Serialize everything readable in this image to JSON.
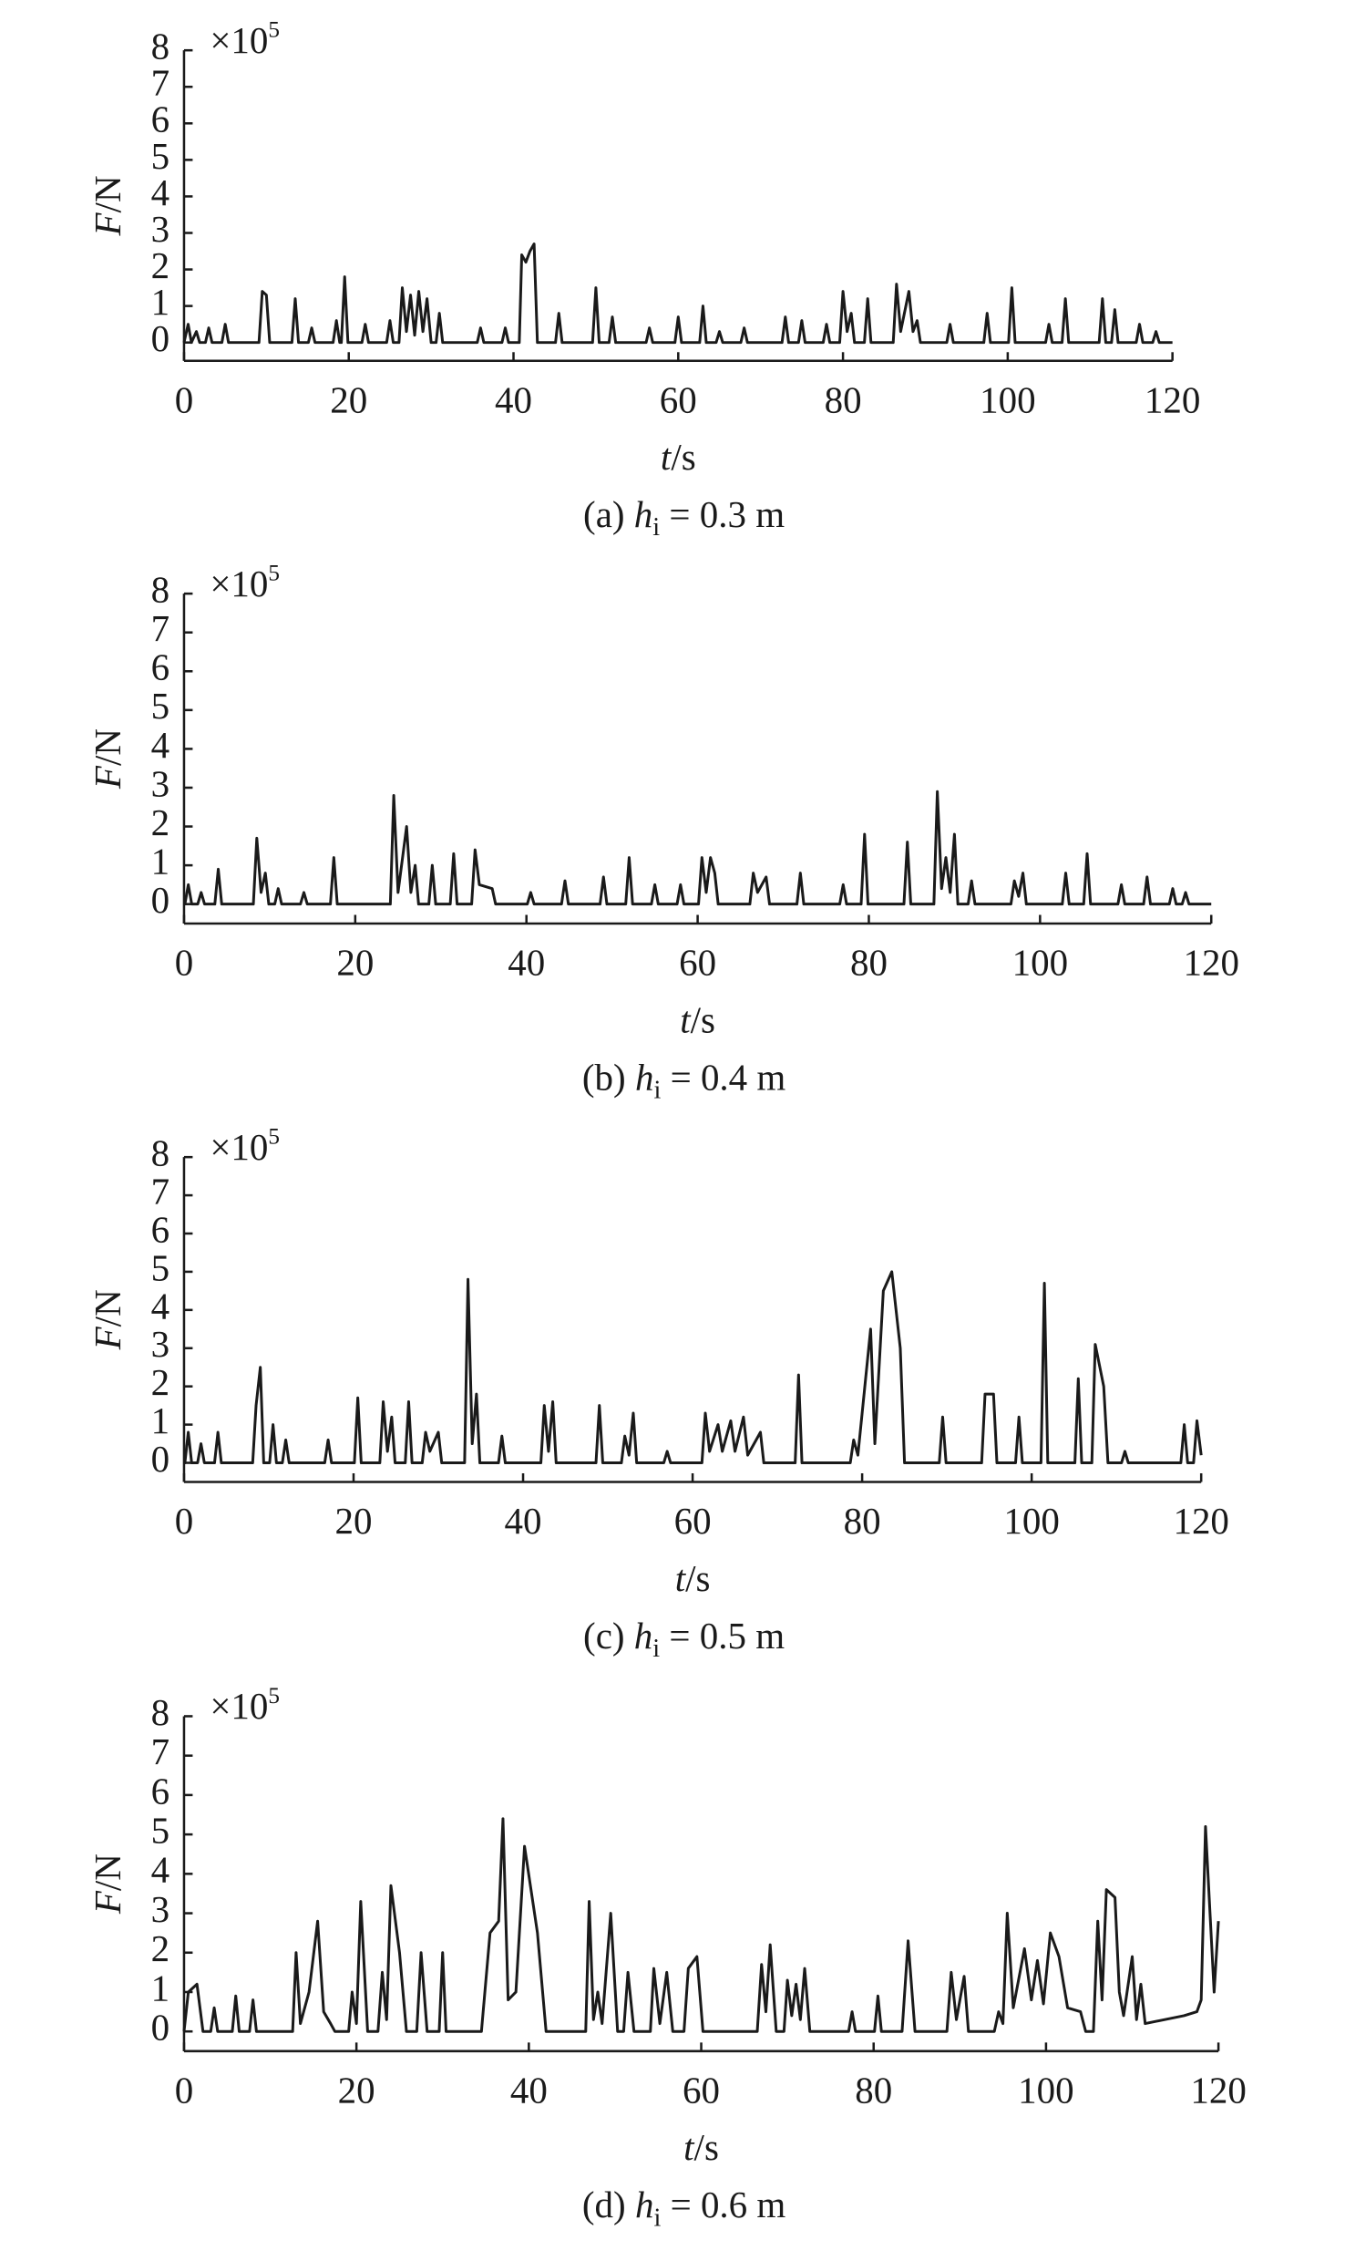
{
  "chart_data": [
    {
      "type": "line",
      "caption": [
        "(a) ",
        "h",
        "i",
        " = 0.3 m"
      ],
      "y_label": [
        "F",
        "/N"
      ],
      "x_label": [
        "t",
        "/s"
      ],
      "y_multiplier": [
        "×10",
        "5"
      ],
      "color": "#1a1a1a",
      "xlim": [
        0,
        120
      ],
      "xticks": [
        0,
        20,
        40,
        60,
        80,
        100,
        120
      ],
      "ylim": [
        -0.5,
        8
      ],
      "yticks": [
        0,
        1,
        2,
        3,
        4,
        5,
        6,
        7,
        8
      ],
      "x": [
        0,
        0.5,
        0.9,
        1.5,
        1.9,
        2.6,
        3,
        3.4,
        4.6,
        5,
        5.4,
        9.1,
        9.5,
        10,
        10.4,
        13.1,
        13.5,
        13.9,
        15.1,
        15.5,
        15.9,
        18.1,
        18.5,
        18.9,
        19.1,
        19.5,
        19.9,
        21.6,
        22,
        22.4,
        24.6,
        25,
        25.4,
        26.1,
        26.5,
        27,
        27.5,
        28,
        28.5,
        29,
        29.5,
        30,
        30.6,
        31,
        31.4,
        35.6,
        36,
        36.4,
        38.6,
        39,
        39.4,
        40.7,
        41,
        41.5,
        42,
        42.5,
        42.9,
        45.1,
        45.5,
        45.9,
        49.6,
        50,
        50.4,
        51.6,
        52,
        52.4,
        56.1,
        56.5,
        56.9,
        59.6,
        60,
        60.4,
        62.6,
        63,
        63.4,
        64.6,
        65,
        65.4,
        67.6,
        68,
        68.4,
        72.6,
        73,
        73.4,
        74.6,
        75,
        75.4,
        77.6,
        78,
        78.4,
        79.6,
        80,
        80.5,
        81,
        81.4,
        82.6,
        83,
        83.4,
        86.1,
        86.5,
        87,
        88,
        88.5,
        89,
        89.4,
        92.6,
        93,
        93.4,
        97.1,
        97.5,
        97.9,
        100.1,
        100.5,
        100.9,
        104.6,
        105,
        105.4,
        106.6,
        107,
        107.4,
        111.1,
        111.5,
        111.9,
        112.6,
        113,
        113.4,
        115.6,
        116,
        116.4,
        117.6,
        118,
        118.4,
        120
      ],
      "values": [
        0,
        0.5,
        0,
        0.3,
        0,
        0,
        0.4,
        0,
        0,
        0.5,
        0,
        0,
        1.4,
        1.3,
        0,
        0,
        1.2,
        0,
        0,
        0.4,
        0,
        0,
        0.6,
        0,
        0,
        1.8,
        0,
        0,
        0.5,
        0,
        0,
        0.6,
        0,
        0,
        1.5,
        0.3,
        1.3,
        0.2,
        1.4,
        0.3,
        1.2,
        0,
        0,
        0.8,
        0,
        0,
        0.4,
        0,
        0,
        0.4,
        0,
        0,
        2.4,
        2.2,
        2.5,
        2.7,
        0,
        0,
        0.8,
        0,
        0,
        1.5,
        0,
        0,
        0.7,
        0,
        0,
        0.4,
        0,
        0,
        0.7,
        0,
        0,
        1.0,
        0,
        0,
        0.3,
        0,
        0,
        0.4,
        0,
        0,
        0.7,
        0,
        0,
        0.6,
        0,
        0,
        0.5,
        0,
        0,
        1.4,
        0.3,
        0.8,
        0,
        0,
        1.2,
        0,
        0,
        1.6,
        0.3,
        1.4,
        0.3,
        0.6,
        0,
        0,
        0.5,
        0,
        0,
        0.8,
        0,
        0,
        1.5,
        0,
        0,
        0.5,
        0,
        0,
        1.2,
        0,
        0,
        1.2,
        0,
        0,
        0.9,
        0,
        0,
        0.5,
        0,
        0,
        0.3,
        0,
        0
      ]
    },
    {
      "type": "line",
      "caption": [
        "(b) ",
        "h",
        "i",
        " = 0.4 m"
      ],
      "y_label": [
        "F",
        "/N"
      ],
      "x_label": [
        "t",
        "/s"
      ],
      "y_multiplier": [
        "×10",
        "5"
      ],
      "color": "#1a1a1a",
      "xlim": [
        0,
        120
      ],
      "xticks": [
        0,
        20,
        40,
        60,
        80,
        100,
        120
      ],
      "ylim": [
        -0.5,
        8
      ],
      "yticks": [
        0,
        1,
        2,
        3,
        4,
        5,
        6,
        7,
        8
      ],
      "x": [
        0,
        0.1,
        0.5,
        0.9,
        1.6,
        2,
        2.4,
        3.6,
        4,
        4.4,
        8.1,
        8.5,
        9,
        9.5,
        9.9,
        10.6,
        11,
        11.4,
        13.6,
        14,
        14.4,
        17.1,
        17.5,
        17.9,
        24.1,
        24.5,
        25,
        26,
        26.5,
        27,
        27.4,
        28.6,
        29,
        29.4,
        31.1,
        31.5,
        31.9,
        33.6,
        34,
        34.5,
        36,
        36.4,
        40.1,
        40.5,
        40.9,
        44.1,
        44.5,
        44.9,
        48.6,
        49,
        49.4,
        51.6,
        52,
        52.4,
        54.6,
        55,
        55.4,
        57.6,
        58,
        58.4,
        60.1,
        60.5,
        61,
        61.5,
        62,
        62.4,
        66.1,
        66.5,
        67,
        68,
        68.4,
        71.6,
        72,
        72.4,
        76.6,
        77,
        77.4,
        79.1,
        79.5,
        79.9,
        84.1,
        84.5,
        84.9,
        87.6,
        88,
        88.5,
        89,
        89.5,
        90,
        90.4,
        91.6,
        92,
        92.4,
        96.6,
        97,
        97.5,
        98,
        98.4,
        102.6,
        103,
        103.4,
        105.1,
        105.5,
        105.9,
        109.1,
        109.5,
        109.9,
        112.1,
        112.5,
        112.9,
        115.1,
        115.5,
        115.9,
        116.6,
        117,
        117.4,
        120
      ],
      "values": [
        0,
        0,
        0.5,
        0,
        0,
        0.3,
        0,
        0,
        0.9,
        0,
        0,
        1.7,
        0.3,
        0.8,
        0,
        0,
        0.4,
        0,
        0,
        0.3,
        0,
        0,
        1.2,
        0,
        0,
        2.8,
        0.3,
        2.0,
        0.3,
        1.0,
        0,
        0,
        1.0,
        0,
        0,
        1.3,
        0,
        0,
        1.4,
        0.5,
        0.4,
        0,
        0,
        0.3,
        0,
        0,
        0.6,
        0,
        0,
        0.7,
        0,
        0,
        1.2,
        0,
        0,
        0.5,
        0,
        0,
        0.5,
        0,
        0,
        1.2,
        0.3,
        1.2,
        0.8,
        0,
        0,
        0.8,
        0.3,
        0.7,
        0,
        0,
        0.8,
        0,
        0,
        0.5,
        0,
        0,
        1.8,
        0,
        0,
        1.6,
        0,
        0,
        2.9,
        0.4,
        1.2,
        0.3,
        1.8,
        0,
        0,
        0.6,
        0,
        0,
        0.6,
        0.2,
        0.8,
        0,
        0,
        0.8,
        0,
        0,
        1.3,
        0,
        0,
        0.5,
        0,
        0,
        0.7,
        0,
        0,
        0.4,
        0,
        0,
        0.3,
        0,
        0
      ]
    },
    {
      "type": "line",
      "caption": [
        "(c) ",
        "h",
        "i",
        " = 0.5 m"
      ],
      "y_label": [
        "F",
        "/N"
      ],
      "x_label": [
        "t",
        "/s"
      ],
      "y_multiplier": [
        "×10",
        "5"
      ],
      "color": "#1a1a1a",
      "xlim": [
        0,
        120
      ],
      "xticks": [
        0,
        20,
        40,
        60,
        80,
        100,
        120
      ],
      "ylim": [
        -0.5,
        8
      ],
      "yticks": [
        0,
        1,
        2,
        3,
        4,
        5,
        6,
        7,
        8
      ],
      "x": [
        0,
        0.1,
        0.5,
        0.9,
        1.6,
        2,
        2.4,
        3.6,
        4,
        4.4,
        8.1,
        8.5,
        9,
        9.4,
        10.1,
        10.5,
        10.9,
        11.6,
        12,
        12.4,
        16.6,
        17,
        17.4,
        20.1,
        20.5,
        20.9,
        23.1,
        23.5,
        24,
        24.5,
        24.9,
        26.1,
        26.5,
        26.9,
        28.1,
        28.5,
        29,
        30,
        30.4,
        33.1,
        33.5,
        34,
        34.5,
        34.9,
        37.1,
        37.5,
        37.9,
        42.1,
        42.5,
        43,
        43.5,
        43.9,
        48.6,
        49,
        49.4,
        51.6,
        52,
        52.5,
        53,
        53.4,
        56.6,
        57,
        57.4,
        61.1,
        61.5,
        62,
        63,
        63.5,
        64.5,
        65,
        66,
        66.5,
        68,
        68.4,
        72.1,
        72.5,
        72.9,
        78.6,
        79,
        79.5,
        81,
        81.5,
        82.5,
        83.5,
        84.5,
        85,
        89.1,
        89.5,
        89.9,
        94.1,
        94.5,
        95.5,
        95.9,
        98.1,
        98.5,
        98.9,
        101.1,
        101.5,
        101.9,
        105.1,
        105.5,
        105.9,
        107.1,
        107.5,
        108.5,
        109,
        110.6,
        111,
        111.4,
        117.6,
        118,
        118.4,
        119.1,
        119.5,
        120
      ],
      "values": [
        0,
        0,
        0.8,
        0,
        0,
        0.5,
        0,
        0,
        0.8,
        0,
        0,
        1.5,
        2.5,
        0,
        0,
        1.0,
        0,
        0,
        0.6,
        0,
        0,
        0.6,
        0,
        0,
        1.7,
        0,
        0,
        1.6,
        0.3,
        1.2,
        0,
        0,
        1.6,
        0,
        0,
        0.8,
        0.3,
        0.8,
        0,
        0,
        4.8,
        0.5,
        1.8,
        0,
        0,
        0.7,
        0,
        0,
        1.5,
        0.3,
        1.6,
        0,
        0,
        1.5,
        0,
        0,
        0.7,
        0.2,
        1.3,
        0,
        0,
        0.3,
        0,
        0,
        1.3,
        0.3,
        1.0,
        0.3,
        1.1,
        0.3,
        1.2,
        0.2,
        0.8,
        0,
        0,
        2.3,
        0,
        0,
        0.6,
        0.2,
        3.5,
        0.5,
        4.5,
        5.0,
        3.0,
        0,
        0,
        1.2,
        0,
        0,
        1.8,
        1.8,
        0,
        0,
        1.2,
        0,
        0,
        4.7,
        0,
        0,
        2.2,
        0,
        0,
        3.1,
        2.0,
        0,
        0,
        0.3,
        0,
        0,
        1.0,
        0,
        0,
        1.1,
        0.2
      ]
    },
    {
      "type": "line",
      "caption": [
        "(d) ",
        "h",
        "i",
        " = 0.6 m"
      ],
      "y_label": [
        "F",
        "/N"
      ],
      "x_label": [
        "t",
        "/s"
      ],
      "y_multiplier": [
        "×10",
        "5"
      ],
      "color": "#1a1a1a",
      "xlim": [
        0,
        120
      ],
      "xticks": [
        0,
        20,
        40,
        60,
        80,
        100,
        120
      ],
      "ylim": [
        -0.5,
        8
      ],
      "yticks": [
        0,
        1,
        2,
        3,
        4,
        5,
        6,
        7,
        8
      ],
      "x": [
        0,
        0.5,
        1.5,
        2.2,
        3.1,
        3.5,
        3.9,
        5.6,
        6,
        6.4,
        7.6,
        8,
        8.4,
        12.6,
        13,
        13.5,
        14.5,
        15.5,
        16.2,
        17,
        17.5,
        19.1,
        19.5,
        20,
        20.5,
        21.3,
        22.5,
        23,
        23.5,
        24,
        25,
        25.8,
        27,
        27.5,
        28.2,
        29.6,
        30,
        30.4,
        34.5,
        35.5,
        36.5,
        37,
        37.6,
        38.5,
        39.5,
        41,
        42,
        46.6,
        47,
        47.5,
        48,
        48.5,
        49.5,
        50.3,
        51,
        51.5,
        52.2,
        54.1,
        54.5,
        55.2,
        56,
        56.7,
        58,
        58.5,
        59.5,
        60.2,
        66.5,
        67,
        67.5,
        68,
        68.7,
        69.6,
        70,
        70.5,
        71,
        71.5,
        72,
        72.6,
        77.1,
        77.5,
        77.9,
        80.1,
        80.5,
        80.9,
        83.3,
        84,
        84.8,
        88.5,
        89,
        89.6,
        90.5,
        91,
        94,
        94.5,
        95,
        95.5,
        96.2,
        97.5,
        98.3,
        99,
        99.7,
        100.5,
        101.5,
        102.5,
        104,
        104.6,
        105.5,
        106,
        106.5,
        107,
        108,
        108.5,
        109,
        110,
        110.5,
        111,
        111.5,
        116,
        117.5,
        118,
        118.5,
        119.5,
        120
      ],
      "values": [
        0,
        1.0,
        1.2,
        0,
        0,
        0.6,
        0,
        0,
        0.9,
        0,
        0,
        0.8,
        0,
        0,
        2.0,
        0.2,
        1.0,
        2.8,
        0.5,
        0.2,
        0,
        0,
        1.0,
        0.2,
        3.3,
        0,
        0,
        1.5,
        0.3,
        3.7,
        2.0,
        0,
        0,
        2.0,
        0,
        0,
        2.0,
        0,
        0,
        2.5,
        2.8,
        5.4,
        0.8,
        1.0,
        4.7,
        2.5,
        0,
        0,
        3.3,
        0.3,
        1.0,
        0.2,
        3.0,
        0,
        0,
        1.5,
        0,
        0,
        1.6,
        0.2,
        1.5,
        0,
        0,
        1.6,
        1.9,
        0,
        0,
        1.7,
        0.5,
        2.2,
        0,
        0,
        1.3,
        0.4,
        1.2,
        0.3,
        1.6,
        0,
        0,
        0.5,
        0,
        0,
        0.9,
        0,
        0,
        2.3,
        0,
        0,
        1.5,
        0.3,
        1.4,
        0,
        0,
        0.5,
        0.2,
        3.0,
        0.6,
        2.1,
        0.8,
        1.8,
        0.7,
        2.5,
        1.9,
        0.6,
        0.5,
        0,
        0,
        2.8,
        0.8,
        3.6,
        3.4,
        1.0,
        0.4,
        1.9,
        0.3,
        1.2,
        0.2,
        0.4,
        0.5,
        0.8,
        5.2,
        1.0,
        2.8
      ]
    }
  ]
}
